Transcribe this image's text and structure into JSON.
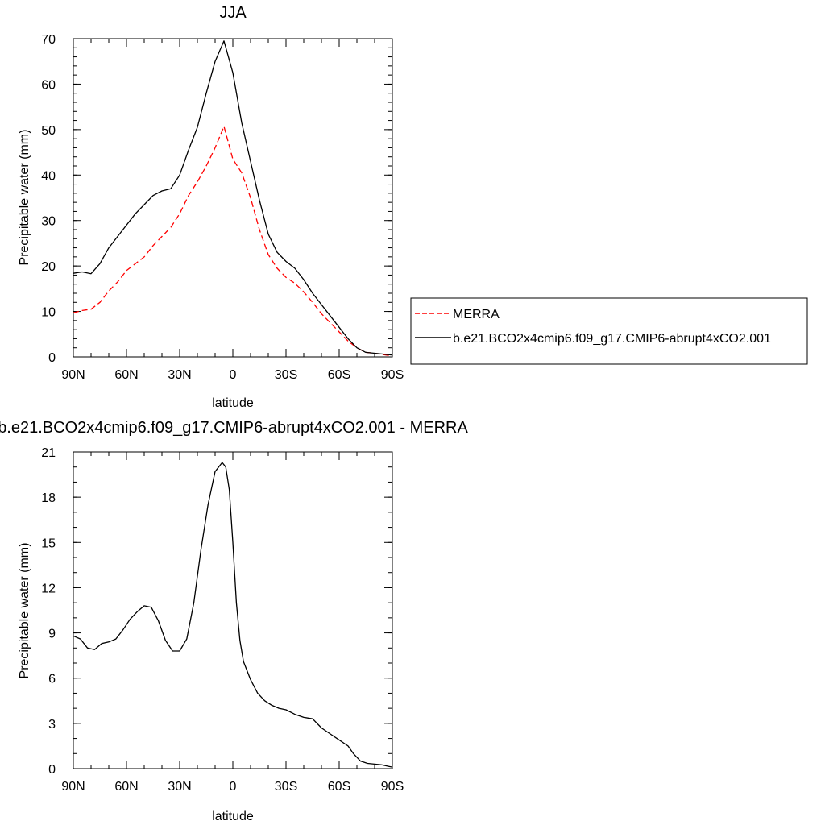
{
  "chart_data": [
    {
      "type": "line",
      "title": "JJA",
      "xlabel": "latitude",
      "ylabel": "Precipitable water (mm)",
      "xlim": [
        90,
        -90
      ],
      "ylim": [
        0,
        70
      ],
      "x_ticks": [
        {
          "value": 90,
          "label": "90N"
        },
        {
          "value": 60,
          "label": "60N"
        },
        {
          "value": 30,
          "label": "30N"
        },
        {
          "value": 0,
          "label": "0"
        },
        {
          "value": -30,
          "label": "30S"
        },
        {
          "value": -60,
          "label": "60S"
        },
        {
          "value": -90,
          "label": "90S"
        }
      ],
      "y_ticks": [
        0,
        10,
        20,
        30,
        40,
        50,
        60,
        70
      ],
      "x_minor_step": 10,
      "y_minor_step": 2,
      "grid": false,
      "legend_position": "outside-right",
      "series": [
        {
          "name": "MERRA",
          "color": "#ff0000",
          "dash": "dashed",
          "x": [
            90,
            85,
            80,
            75,
            70,
            65,
            60,
            55,
            50,
            45,
            40,
            35,
            30,
            25,
            20,
            15,
            10,
            5,
            0,
            -5,
            -10,
            -15,
            -20,
            -25,
            -30,
            -35,
            -40,
            -45,
            -50,
            -55,
            -60,
            -65,
            -70,
            -75,
            -80,
            -85,
            -90
          ],
          "y": [
            9.7,
            10.2,
            10.5,
            12.0,
            14.5,
            16.5,
            19.0,
            20.5,
            22.0,
            24.5,
            26.5,
            28.5,
            31.5,
            35.5,
            38.5,
            42.0,
            46.0,
            50.7,
            43.5,
            40.5,
            35.0,
            28.0,
            22.5,
            19.5,
            17.5,
            16.2,
            14.3,
            12.0,
            9.5,
            7.5,
            5.5,
            3.5,
            2.0,
            1.0,
            0.8,
            0.5,
            0.2
          ]
        },
        {
          "name": "b.e21.BCO2x4cmip6.f09_g17.CMIP6-abrupt4xCO2.001",
          "color": "#000000",
          "dash": "solid",
          "x": [
            90,
            85,
            80,
            75,
            70,
            65,
            60,
            55,
            50,
            45,
            40,
            35,
            30,
            25,
            20,
            15,
            10,
            5,
            0,
            -5,
            -10,
            -15,
            -20,
            -25,
            -30,
            -35,
            -40,
            -45,
            -50,
            -55,
            -60,
            -65,
            -70,
            -75,
            -80,
            -85,
            -90
          ],
          "y": [
            18.4,
            18.7,
            18.3,
            20.5,
            24.0,
            26.5,
            29.0,
            31.5,
            33.5,
            35.5,
            36.5,
            37.0,
            40.0,
            45.5,
            50.5,
            58.0,
            65.0,
            69.5,
            62.5,
            51.5,
            43.0,
            34.5,
            27.0,
            23.0,
            21.0,
            19.5,
            17.0,
            14.0,
            11.5,
            9.0,
            6.5,
            4.0,
            2.0,
            1.0,
            0.8,
            0.6,
            0.4
          ]
        }
      ]
    },
    {
      "type": "line",
      "title": "b.e21.BCO2x4cmip6.f09_g17.CMIP6-abrupt4xCO2.001 - MERRA",
      "xlabel": "latitude",
      "ylabel": "Precipitable water (mm)",
      "xlim": [
        90,
        -90
      ],
      "ylim": [
        0,
        21
      ],
      "x_ticks": [
        {
          "value": 90,
          "label": "90N"
        },
        {
          "value": 60,
          "label": "60N"
        },
        {
          "value": 30,
          "label": "30N"
        },
        {
          "value": 0,
          "label": "0"
        },
        {
          "value": -30,
          "label": "30S"
        },
        {
          "value": -60,
          "label": "60S"
        },
        {
          "value": -90,
          "label": "90S"
        }
      ],
      "y_ticks": [
        0,
        3,
        6,
        9,
        12,
        15,
        18,
        21
      ],
      "x_minor_step": 10,
      "y_minor_step": 1,
      "grid": false,
      "series": [
        {
          "color": "#000000",
          "dash": "solid",
          "x": [
            90,
            86,
            82,
            78,
            74,
            70,
            66,
            62,
            58,
            54,
            50,
            46,
            42,
            38,
            34,
            30,
            26,
            22,
            18,
            14,
            10,
            6,
            4,
            2,
            0,
            -2,
            -4,
            -6,
            -8,
            -10,
            -14,
            -18,
            -22,
            -26,
            -30,
            -35,
            -40,
            -45,
            -50,
            -55,
            -60,
            -65,
            -68,
            -72,
            -76,
            -80,
            -84,
            -88,
            -90
          ],
          "y": [
            8.8,
            8.6,
            8.0,
            7.9,
            8.3,
            8.4,
            8.6,
            9.2,
            9.9,
            10.4,
            10.8,
            10.7,
            9.8,
            8.5,
            7.8,
            7.8,
            8.6,
            11.0,
            14.5,
            17.5,
            19.7,
            20.3,
            20.0,
            18.5,
            15.0,
            11.0,
            8.5,
            7.1,
            6.5,
            5.9,
            5.0,
            4.5,
            4.2,
            4.0,
            3.9,
            3.6,
            3.4,
            3.3,
            2.7,
            2.3,
            1.9,
            1.5,
            1.0,
            0.5,
            0.35,
            0.3,
            0.25,
            0.15,
            0.1
          ]
        }
      ]
    }
  ]
}
